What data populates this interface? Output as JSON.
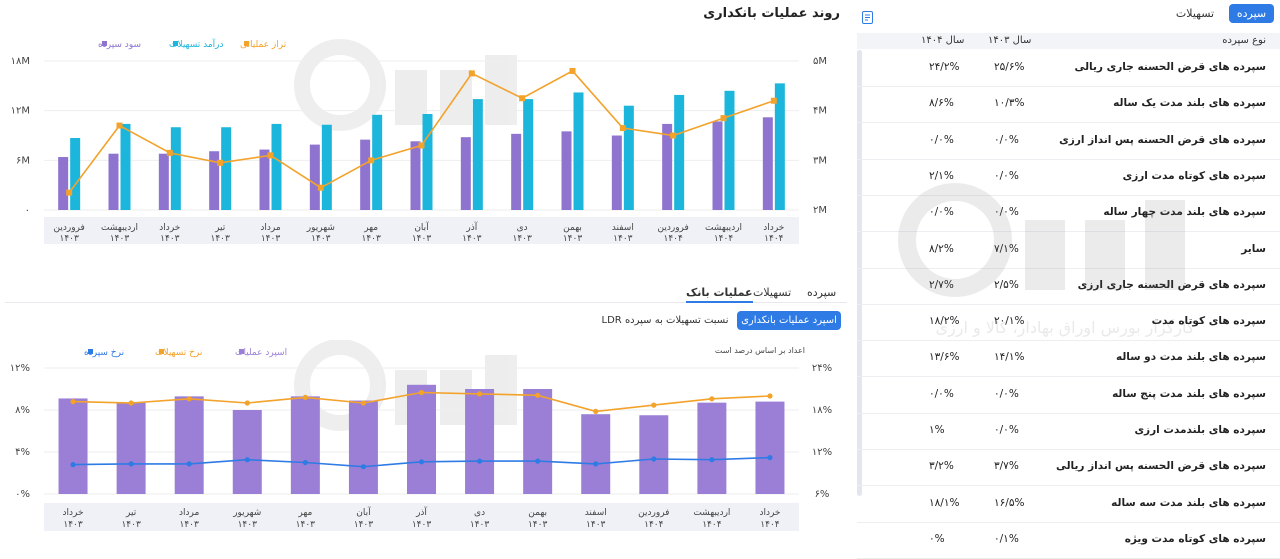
{
  "side_panel": {
    "tabs": [
      {
        "label": "سپرده",
        "active": true
      },
      {
        "label": "تسهیلات",
        "active": false
      }
    ],
    "table": {
      "headers": {
        "type": "نوع سپرده",
        "y1403": "سال ۱۴۰۳",
        "y1404": "سال ۱۴۰۴"
      },
      "rows": [
        {
          "name": "سپرده های قرض الحسنه جاری ریالی",
          "y1403": "۲۵/۶%",
          "y1404": "۲۴/۲%"
        },
        {
          "name": "سپرده های بلند مدت یک ساله",
          "y1403": "۱۰/۳%",
          "y1404": "۸/۶%"
        },
        {
          "name": "سپرده های قرض الحسنه پس انداز ارزی",
          "y1403": "۰/۰%",
          "y1404": "۰/۰%"
        },
        {
          "name": "سپرده های کوتاه مدت ارزی",
          "y1403": "۰/۰%",
          "y1404": "۲/۱%"
        },
        {
          "name": "سپرده های بلند مدت چهار ساله",
          "y1403": "۰/۰%",
          "y1404": "۰/۰%"
        },
        {
          "name": "سایر",
          "y1403": "۷/۱%",
          "y1404": "۸/۲%"
        },
        {
          "name": "سپرده های قرض الحسنه جاری ارزی",
          "y1403": "۲/۵%",
          "y1404": "۲/۷%"
        },
        {
          "name": "سپرده های کوتاه مدت",
          "y1403": "۲۰/۱%",
          "y1404": "۱۸/۲%"
        },
        {
          "name": "سپرده های بلند مدت دو ساله",
          "y1403": "۱۴/۱%",
          "y1404": "۱۳/۶%"
        },
        {
          "name": "سپرده های بلند مدت پنج ساله",
          "y1403": "۰/۰%",
          "y1404": "۰/۰%"
        },
        {
          "name": "سپرده های بلندمدت ارزی",
          "y1403": "۰/۰%",
          "y1404": "۱%"
        },
        {
          "name": "سپرده های قرض الحسنه پس انداز ریالی",
          "y1403": "۳/۷%",
          "y1404": "۳/۲%"
        },
        {
          "name": "سپرده های بلند مدت سه ساله",
          "y1403": "۱۶/۵%",
          "y1404": "۱۸/۱%"
        },
        {
          "name": "سپرده های کوتاه مدت ویژه",
          "y1403": "۰/۱%",
          "y1404": "۰%"
        }
      ]
    },
    "watermark_text": "کارگزار بورس اوراق بهادار، کالا و ارزی"
  },
  "main": {
    "title": "روند عملیات بانکداری",
    "subtabs": [
      {
        "label": "عملیات بانک",
        "active": true
      },
      {
        "label": "تسهیلات",
        "active": false
      },
      {
        "label": "سپرده",
        "active": false
      }
    ],
    "toggle": {
      "active_label": "اسپرد عملیات بانکداری",
      "inactive_label": "نسبت تسهیلات به سپرده LDR"
    },
    "note": "اعداد بر اساس درصد است"
  },
  "colors": {
    "purple": "#8f74cf",
    "cyan": "#1cb6dc",
    "orange": "#f3a22a",
    "blue": "#2f7be5",
    "bar2": "#9b7fd6"
  },
  "chart_data": [
    {
      "type": "bar",
      "legend": [
        "تراز عملیاتی",
        "درآمد تسهیلات",
        "سود سپرده"
      ],
      "categories": [
        [
          "فروردین",
          "۱۴۰۳"
        ],
        [
          "اردیبهشت",
          "۱۴۰۳"
        ],
        [
          "خرداد",
          "۱۴۰۳"
        ],
        [
          "تیر",
          "۱۴۰۳"
        ],
        [
          "مرداد",
          "۱۴۰۳"
        ],
        [
          "شهریور",
          "۱۴۰۳"
        ],
        [
          "مهر",
          "۱۴۰۳"
        ],
        [
          "آبان",
          "۱۴۰۳"
        ],
        [
          "آذر",
          "۱۴۰۳"
        ],
        [
          "دی",
          "۱۴۰۳"
        ],
        [
          "بهمن",
          "۱۴۰۳"
        ],
        [
          "اسفند",
          "۱۴۰۳"
        ],
        [
          "فروردین",
          "۱۴۰۴"
        ],
        [
          "اردیبهشت",
          "۱۴۰۴"
        ],
        [
          "خرداد",
          "۱۴۰۴"
        ]
      ],
      "series": [
        {
          "name": "سود سپرده",
          "axis": "left",
          "values": [
            6.4,
            6.8,
            6.8,
            7.1,
            7.3,
            7.9,
            8.5,
            8.3,
            8.8,
            9.2,
            9.5,
            9.0,
            10.4,
            10.7,
            11.2
          ]
        },
        {
          "name": "درآمد تسهیلات",
          "axis": "left",
          "values": [
            8.7,
            10.4,
            10.0,
            10.0,
            10.4,
            10.3,
            11.5,
            11.6,
            13.4,
            13.4,
            14.2,
            12.6,
            13.9,
            14.4,
            15.3
          ]
        },
        {
          "name": "تراز عملیاتی",
          "type": "line",
          "axis": "right",
          "values": [
            2.35,
            3.7,
            3.15,
            2.95,
            3.1,
            2.45,
            3.0,
            3.3,
            4.75,
            4.25,
            4.8,
            3.65,
            3.5,
            3.85,
            4.2
          ]
        }
      ],
      "left_axis": {
        "ticks": [
          "۰",
          "۶M",
          "۱۲M",
          "۱۸M"
        ],
        "range": [
          0,
          18
        ]
      },
      "right_axis": {
        "ticks": [
          "۲M",
          "۳M",
          "۴M",
          "۵M"
        ],
        "range": [
          2,
          5
        ]
      }
    },
    {
      "type": "bar",
      "legend": [
        "اسپرد عملیات",
        "نرخ تسهیلات",
        "نرخ سپرده"
      ],
      "categories": [
        [
          "خرداد",
          "۱۴۰۳"
        ],
        [
          "تیر",
          "۱۴۰۳"
        ],
        [
          "مرداد",
          "۱۴۰۳"
        ],
        [
          "شهریور",
          "۱۴۰۳"
        ],
        [
          "مهر",
          "۱۴۰۳"
        ],
        [
          "آبان",
          "۱۴۰۳"
        ],
        [
          "آذر",
          "۱۴۰۳"
        ],
        [
          "دی",
          "۱۴۰۳"
        ],
        [
          "بهمن",
          "۱۴۰۳"
        ],
        [
          "اسفند",
          "۱۴۰۳"
        ],
        [
          "فروردین",
          "۱۴۰۴"
        ],
        [
          "اردیبهشت",
          "۱۴۰۴"
        ],
        [
          "خرداد",
          "۱۴۰۴"
        ]
      ],
      "series": [
        {
          "name": "اسپرد عملیات",
          "axis": "left",
          "values": [
            9.1,
            8.7,
            9.3,
            8.0,
            9.3,
            8.9,
            10.4,
            10.0,
            10.0,
            7.6,
            7.5,
            8.7,
            8.8
          ]
        },
        {
          "name": "نرخ تسهیلات",
          "type": "line",
          "axis": "right",
          "values": [
            19.2,
            19.0,
            19.6,
            19.0,
            19.8,
            19.0,
            20.5,
            20.3,
            20.1,
            17.8,
            18.7,
            19.6,
            20.0
          ]
        },
        {
          "name": "نرخ سپرده",
          "type": "line",
          "axis": "right",
          "values": [
            10.2,
            10.3,
            10.3,
            10.9,
            10.5,
            9.9,
            10.6,
            10.7,
            10.7,
            10.3,
            11.0,
            10.9,
            11.2
          ]
        }
      ],
      "left_axis": {
        "ticks": [
          "۰%",
          "۴%",
          "۸%",
          "۱۲%"
        ],
        "range": [
          0,
          12
        ]
      },
      "right_axis": {
        "ticks": [
          "۶%",
          "۱۲%",
          "۱۸%",
          "۲۴%"
        ],
        "range": [
          6,
          24
        ]
      }
    }
  ]
}
